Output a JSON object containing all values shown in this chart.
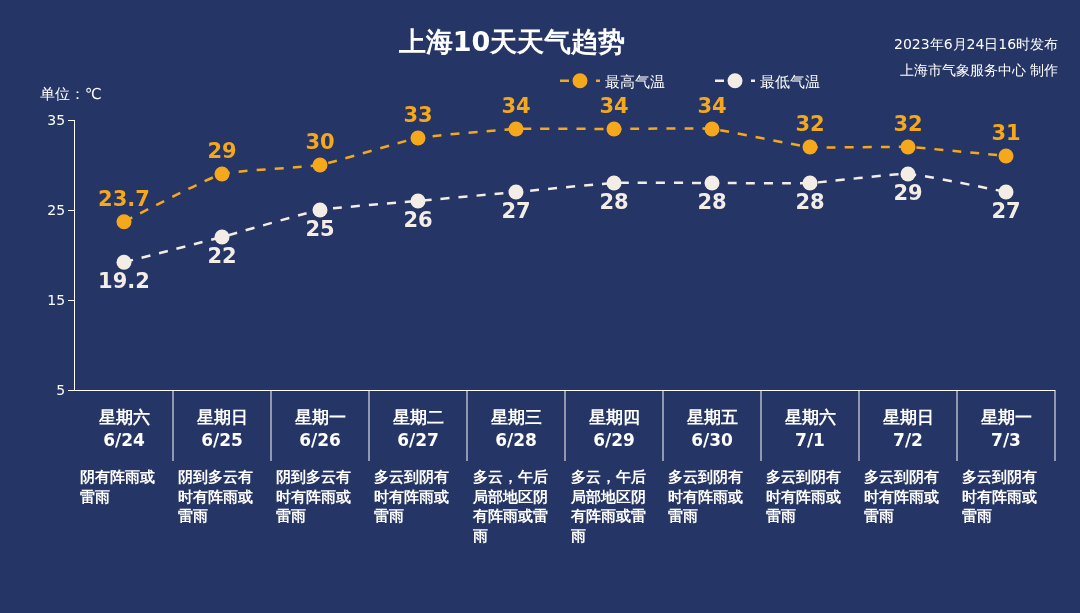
{
  "chart_data": {
    "type": "line",
    "title": "上海10天天气趋势",
    "ylabel": "单位：℃",
    "categories": [
      "星期六\n6/24",
      "星期日\n6/25",
      "星期一\n6/26",
      "星期二\n6/27",
      "星期三\n6/28",
      "星期四\n6/29",
      "星期五\n6/30",
      "星期六\n7/1",
      "星期日\n7/2",
      "星期一\n7/3"
    ],
    "series": [
      {
        "name": "最高气温",
        "color": "#f5a81c",
        "values": [
          23.7,
          29,
          30,
          33,
          34,
          34,
          34,
          32,
          32,
          31
        ]
      },
      {
        "name": "最低气温",
        "color": "#f4ede6",
        "values": [
          19.2,
          22,
          25,
          26,
          27,
          28,
          28,
          28,
          29,
          27
        ]
      }
    ],
    "ylim": [
      5,
      35
    ],
    "yticks": [
      5,
      15,
      25,
      35
    ],
    "grid": false,
    "legend": "top right",
    "marker": "circle",
    "line_style": "dashed",
    "data_labels": true,
    "annotations": [
      "2023年6月24日16时发布",
      "上海市气象服务中心 制作",
      "阴有阵雨或雷雨",
      "阴到多云有时有阵雨或雷雨",
      "阴到多云有时有阵雨或雷雨",
      "多云到阴有时有阵雨或雷雨",
      "多云，午后局部地区阴有阵雨或雷雨",
      "多云，午后局部地区阴有阵雨或雷雨",
      "多云到阴有时有阵雨或雷雨",
      "多云到阴有时有阵雨或雷雨",
      "多云到阴有时有阵雨或雷雨",
      "多云到阴有时有阵雨或雷雨"
    ]
  }
}
